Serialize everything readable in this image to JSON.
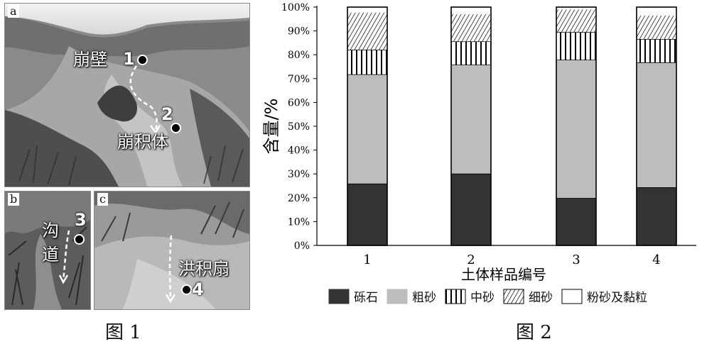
{
  "figure1": {
    "caption": "图 1",
    "panels": {
      "a": {
        "letter": "a",
        "label_wall": "崩壁",
        "point1": "1",
        "label_colluvium": "崩积体",
        "point2": "2"
      },
      "b": {
        "letter": "b",
        "label_gully": "沟\n道",
        "point3": "3"
      },
      "c": {
        "letter": "c",
        "label_fan": "洪积扇",
        "point4": "4"
      }
    }
  },
  "figure2": {
    "caption": "图 2"
  },
  "chart_data": {
    "type": "bar",
    "stacked": true,
    "categories": [
      "1",
      "2",
      "3",
      "4"
    ],
    "xlabel": "土体样品编号",
    "ylabel": "含量/%",
    "ylim": [
      0,
      100
    ],
    "yticks": [
      "0%",
      "10%",
      "20%",
      "30%",
      "40%",
      "50%",
      "60%",
      "70%",
      "80%",
      "90%",
      "100%"
    ],
    "legend_position": "bottom",
    "series": [
      {
        "name": "砾石",
        "values": [
          25.8,
          30.0,
          19.8,
          24.3
        ],
        "color": "#333333",
        "pattern": "solid"
      },
      {
        "name": "粗砂",
        "values": [
          45.9,
          45.7,
          58.0,
          52.4
        ],
        "color": "#bdbdbd",
        "pattern": "solid"
      },
      {
        "name": "中砂",
        "values": [
          10.3,
          9.8,
          11.6,
          9.8
        ],
        "color": "#ffffff",
        "pattern": "vertical-lines"
      },
      {
        "name": "细砂",
        "values": [
          15.7,
          11.5,
          9.6,
          10.0
        ],
        "color": "#ffffff",
        "pattern": "diagonal-lines"
      },
      {
        "name": "粉砂及黏粒",
        "values": [
          2.3,
          3.0,
          1.0,
          3.5
        ],
        "color": "#ffffff",
        "pattern": "none"
      }
    ]
  }
}
